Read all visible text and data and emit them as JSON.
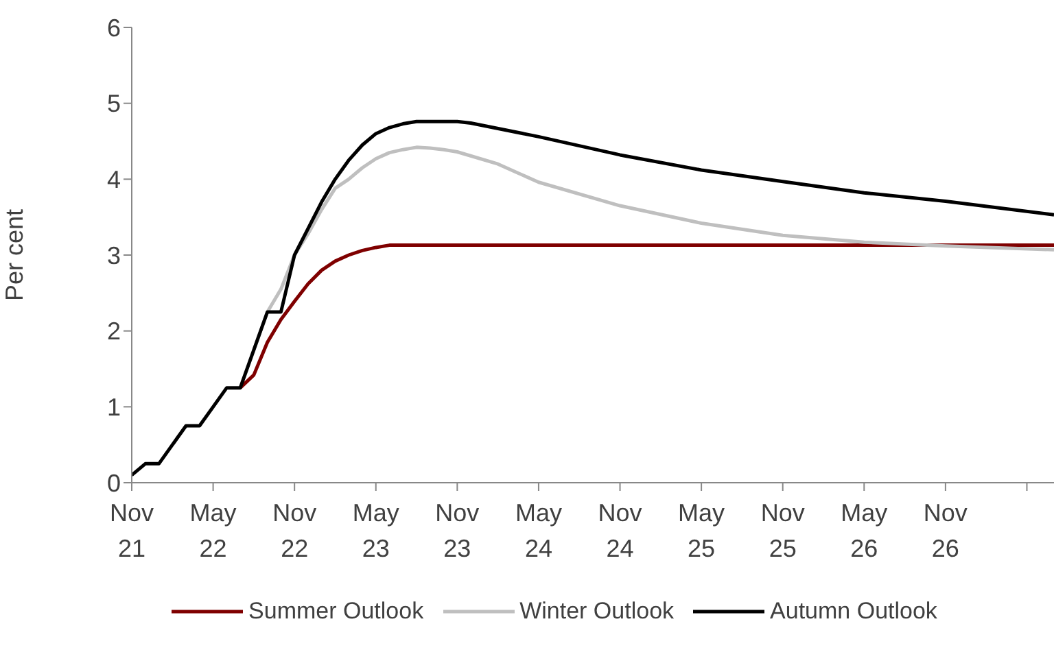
{
  "chart_data": {
    "type": "line",
    "ylabel": "Per cent",
    "xlim": [
      "2021-11",
      "2027-07"
    ],
    "ylim": [
      0,
      6
    ],
    "yticks": [
      0,
      1,
      2,
      3,
      4,
      5,
      6
    ],
    "xticks": [
      {
        "value": "2021-11",
        "label": "Nov 21"
      },
      {
        "value": "2022-05",
        "label": "May 22"
      },
      {
        "value": "2022-11",
        "label": "Nov 22"
      },
      {
        "value": "2023-05",
        "label": "May 23"
      },
      {
        "value": "2023-11",
        "label": "Nov 23"
      },
      {
        "value": "2024-05",
        "label": "May 24"
      },
      {
        "value": "2024-11",
        "label": "Nov 24"
      },
      {
        "value": "2025-05",
        "label": "May 25"
      },
      {
        "value": "2025-11",
        "label": "Nov 25"
      },
      {
        "value": "2026-05",
        "label": "May 26"
      },
      {
        "value": "2026-11",
        "label": "Nov 26"
      },
      {
        "value": "2027-05",
        "label": null
      }
    ],
    "legend": "bottom",
    "marker": "none",
    "line_style": "solid",
    "series": [
      {
        "name": "Summer Outlook",
        "color": "#7f0000",
        "x": [
          "2022-07",
          "2022-08",
          "2022-09",
          "2022-10",
          "2022-11",
          "2022-12",
          "2023-01",
          "2023-02",
          "2023-03",
          "2023-04",
          "2023-05",
          "2023-06",
          "2027-07"
        ],
        "values": [
          1.25,
          1.42,
          1.85,
          2.15,
          2.39,
          2.62,
          2.8,
          2.92,
          3.0,
          3.06,
          3.1,
          3.13,
          3.13
        ]
      },
      {
        "name": "Winter Outlook",
        "color": "#bfbfbf",
        "x": [
          "2022-08",
          "2022-09",
          "2022-10",
          "2022-11",
          "2022-12",
          "2023-01",
          "2023-02",
          "2023-03",
          "2023-04",
          "2023-05",
          "2023-06",
          "2023-07",
          "2023-08",
          "2023-09",
          "2023-10",
          "2023-11",
          "2024-02",
          "2024-05",
          "2024-11",
          "2025-05",
          "2025-11",
          "2026-05",
          "2026-11",
          "2027-07"
        ],
        "values": [
          1.75,
          2.25,
          2.55,
          3.0,
          3.28,
          3.6,
          3.88,
          4.0,
          4.15,
          4.27,
          4.35,
          4.39,
          4.42,
          4.41,
          4.39,
          4.36,
          4.2,
          3.96,
          3.65,
          3.42,
          3.26,
          3.17,
          3.12,
          3.07
        ]
      },
      {
        "name": "Autumn Outlook",
        "color": "#000000",
        "x": [
          "2021-11",
          "2021-12",
          "2022-01",
          "2022-02",
          "2022-03",
          "2022-04",
          "2022-05",
          "2022-06",
          "2022-07",
          "2022-08",
          "2022-09",
          "2022-10",
          "2022-11",
          "2022-12",
          "2023-01",
          "2023-02",
          "2023-03",
          "2023-04",
          "2023-05",
          "2023-06",
          "2023-07",
          "2023-08",
          "2023-11",
          "2023-12",
          "2024-05",
          "2024-11",
          "2025-05",
          "2025-11",
          "2026-05",
          "2026-11",
          "2027-07"
        ],
        "values": [
          0.1,
          0.25,
          0.25,
          0.5,
          0.75,
          0.75,
          1.0,
          1.25,
          1.25,
          1.75,
          2.25,
          2.25,
          3.0,
          3.35,
          3.7,
          4.0,
          4.25,
          4.45,
          4.6,
          4.68,
          4.73,
          4.76,
          4.76,
          4.74,
          4.56,
          4.32,
          4.12,
          3.97,
          3.82,
          3.71,
          3.53
        ]
      }
    ]
  }
}
